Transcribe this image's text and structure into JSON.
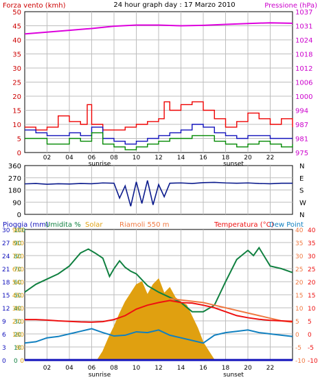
{
  "chart_data": [
    {
      "type": "line",
      "title": "24 hour graph day : 17 Marzo 2010",
      "left_axis_label": "Forza vento (kmh)",
      "right_axis_label": "Pressione (hPa)",
      "x_ticks": [
        "02",
        "04",
        "06",
        "08",
        "10",
        "12",
        "14",
        "16",
        "18",
        "20",
        "22"
      ],
      "x_annotations": [
        "sunrise",
        "sunset"
      ],
      "left_ticks": [
        "0",
        "5",
        "10",
        "15",
        "20",
        "25",
        "30",
        "35",
        "40",
        "45",
        "50"
      ],
      "right_ticks": [
        "975",
        "981",
        "987",
        "994",
        "1000",
        "1006",
        "1012",
        "1018",
        "1024",
        "1031",
        "1037"
      ],
      "ylim_left": [
        0,
        50
      ],
      "ylim_right": [
        975,
        1037
      ],
      "xlim": [
        0,
        24
      ],
      "grid": true,
      "colors": {
        "gust": "#ee0000",
        "speed": "#1010bb",
        "min": "#008800",
        "pressure": "#dd00dd",
        "left_axis": "#cc0000",
        "right_axis": "#cc00cc"
      },
      "series": [
        {
          "role": "pressure",
          "axis": "right",
          "color": "#dd00dd",
          "x": [
            0,
            2,
            4,
            6,
            8,
            10,
            12,
            14,
            16,
            18,
            20,
            22,
            24
          ],
          "y": [
            1027.2,
            1028.0,
            1028.8,
            1029.6,
            1030.6,
            1031.1,
            1031.1,
            1030.8,
            1031.0,
            1031.4,
            1031.8,
            1032.1,
            1031.9
          ]
        },
        {
          "role": "gust",
          "axis": "left",
          "color": "#ee0000",
          "x": [
            0,
            1,
            2,
            3,
            4,
            5,
            5.6,
            6,
            7,
            8,
            9,
            10,
            11,
            12,
            12.5,
            13,
            14,
            15,
            16,
            17,
            18,
            19,
            20,
            21,
            22,
            23,
            24
          ],
          "y": [
            9,
            8,
            9,
            13,
            11,
            10,
            17,
            10,
            8,
            8,
            9,
            10,
            11,
            12,
            18,
            15,
            17,
            18,
            15,
            12,
            9,
            11,
            14,
            12,
            10,
            12,
            9
          ]
        },
        {
          "role": "speed",
          "axis": "left",
          "color": "#1010bb",
          "x": [
            0,
            1,
            2,
            3,
            4,
            5,
            6,
            7,
            8,
            9,
            10,
            11,
            12,
            13,
            14,
            15,
            16,
            17,
            18,
            19,
            20,
            21,
            22,
            23,
            24
          ],
          "y": [
            8,
            7,
            6,
            6,
            7,
            6,
            9,
            5,
            4,
            3,
            4,
            5,
            6,
            7,
            8,
            10,
            9,
            7,
            6,
            5,
            6,
            6,
            5,
            5,
            5
          ]
        },
        {
          "role": "min",
          "axis": "left",
          "color": "#008800",
          "x": [
            0,
            1,
            2,
            3,
            4,
            5,
            6,
            7,
            8,
            9,
            10,
            11,
            12,
            13,
            14,
            15,
            16,
            17,
            18,
            19,
            20,
            21,
            22,
            23,
            24
          ],
          "y": [
            5,
            5,
            3,
            3,
            5,
            4,
            7,
            3,
            2,
            1,
            2,
            3,
            4,
            5,
            5,
            6,
            6,
            4,
            3,
            2,
            3,
            4,
            3,
            2,
            3
          ]
        }
      ]
    },
    {
      "type": "scatter",
      "right_labels": [
        "N",
        "W",
        "S",
        "E",
        "N"
      ],
      "left_ticks": [
        "0",
        "90",
        "180",
        "270",
        "360"
      ],
      "ylim": [
        0,
        360
      ],
      "xlim": [
        0,
        24
      ],
      "grid": true,
      "colors": {
        "line": "#0a1a8c"
      },
      "series": [
        {
          "role": "direction",
          "color": "#0a1a8c",
          "x": [
            0,
            1,
            2,
            3,
            4,
            5,
            6,
            7,
            8,
            8.5,
            9,
            9.5,
            10,
            10.5,
            11,
            11.5,
            12,
            12.5,
            13,
            14,
            15,
            16,
            17,
            18,
            19,
            20,
            21,
            22,
            23,
            24
          ],
          "y": [
            225,
            228,
            222,
            226,
            224,
            228,
            226,
            232,
            230,
            120,
            210,
            60,
            240,
            80,
            250,
            70,
            220,
            130,
            230,
            232,
            228,
            234,
            236,
            232,
            230,
            232,
            228,
            226,
            230,
            230
          ]
        }
      ]
    },
    {
      "type": "area",
      "labels": [
        "Pioggia (mm)",
        "Umidita %",
        "Solar",
        "Riamoli 550 m",
        "Temperatura (°C)",
        "Dew Point"
      ],
      "left_ticks_rain": [
        "0",
        "3",
        "6",
        "9",
        "12",
        "15",
        "18",
        "21",
        "24",
        "27",
        "30"
      ],
      "left_ticks_humidity": [
        "0",
        "10",
        "20",
        "30",
        "40",
        "50",
        "60",
        "70",
        "80",
        "90",
        "100"
      ],
      "left_ticks_solar": [
        "0",
        "90",
        "180",
        "270",
        "360",
        "450",
        "540",
        "630",
        "720",
        "810",
        "900"
      ],
      "right_ticks": [
        "-10",
        "-5",
        "0",
        "5",
        "10",
        "15",
        "20",
        "25",
        "30",
        "35",
        "40"
      ],
      "x_ticks": [
        "02",
        "04",
        "06",
        "08",
        "10",
        "12",
        "14",
        "16",
        "18",
        "20",
        "22"
      ],
      "x_annotations": [
        "sunrise",
        "sunset"
      ],
      "ylim_humidity": [
        0,
        100
      ],
      "ylim_temperature": [
        -10,
        40
      ],
      "xlim": [
        0,
        24
      ],
      "grid": true,
      "colors": {
        "rain": "#1010bb",
        "humidity": "#108040",
        "solar": "#e0a010",
        "remote": "#f07840",
        "temperature": "#ee1010",
        "dew": "#1080c0"
      },
      "series": [
        {
          "role": "humidity",
          "axis": "humidity",
          "color": "#108040",
          "x": [
            0,
            1,
            2,
            3,
            4,
            5,
            5.7,
            6.3,
            7,
            7.6,
            8,
            8.5,
            9,
            9.5,
            10,
            11,
            12,
            13,
            14,
            15,
            16,
            17,
            18,
            19,
            20,
            20.5,
            21,
            22,
            23,
            24
          ],
          "y": [
            52,
            58,
            62,
            66,
            72,
            82,
            85,
            82,
            78,
            64,
            70,
            76,
            71,
            68,
            66,
            57,
            52,
            48,
            44,
            37,
            37,
            42,
            60,
            77,
            84,
            80,
            86,
            72,
            70,
            67
          ]
        },
        {
          "role": "temperature",
          "axis": "temperature",
          "color": "#ee1010",
          "x": [
            0,
            1,
            2,
            3,
            4,
            5,
            6,
            7,
            8,
            9,
            10,
            11,
            12,
            13,
            14,
            15,
            16,
            17,
            18,
            19,
            20,
            21,
            22,
            23,
            24
          ],
          "y": [
            5.5,
            5.5,
            5.3,
            5,
            4.8,
            4.6,
            4.5,
            4.7,
            5.5,
            7,
            9.5,
            11,
            12,
            12.8,
            12,
            11.8,
            11,
            10,
            8.5,
            7,
            6.2,
            5.6,
            5.2,
            5,
            4.8
          ]
        },
        {
          "role": "remote",
          "axis": "temperature",
          "color": "#f07840",
          "x": [
            13,
            14,
            15,
            16,
            17,
            18,
            19,
            20,
            21,
            22,
            23,
            24
          ],
          "y": [
            13.5,
            13,
            12.5,
            12,
            11,
            10,
            9,
            8,
            7,
            6,
            5,
            4.5
          ]
        },
        {
          "role": "dew",
          "axis": "temperature",
          "color": "#1080c0",
          "x": [
            0,
            1,
            2,
            3,
            4,
            5,
            6,
            7,
            8,
            9,
            10,
            11,
            12,
            13,
            14,
            15,
            16,
            17,
            18,
            19,
            20,
            21,
            22,
            23,
            24
          ],
          "y": [
            -3.5,
            -3,
            -1.5,
            -1,
            0,
            1,
            2,
            0.5,
            -0.8,
            -0.5,
            0.8,
            0.5,
            1.5,
            -0.5,
            -1.5,
            -2.5,
            -3.5,
            -0.5,
            0.5,
            1,
            1.5,
            0.5,
            0,
            -0.5,
            -1
          ]
        },
        {
          "role": "solar",
          "axis": "solar",
          "color": "#e0a010",
          "x": [
            6.5,
            7,
            7.5,
            8,
            8.5,
            9,
            9.5,
            10,
            10.5,
            11,
            11.5,
            12,
            12.5,
            13,
            13.5,
            14,
            14.5,
            15,
            15.5,
            16,
            16.5,
            17
          ],
          "y": [
            0,
            60,
            150,
            230,
            320,
            400,
            460,
            520,
            540,
            450,
            520,
            560,
            460,
            500,
            430,
            400,
            380,
            300,
            220,
            120,
            60,
            0
          ]
        },
        {
          "role": "rain",
          "axis": "rain",
          "color": "#1010bb",
          "x": [
            0,
            24
          ],
          "y": [
            0,
            0
          ]
        }
      ]
    }
  ]
}
